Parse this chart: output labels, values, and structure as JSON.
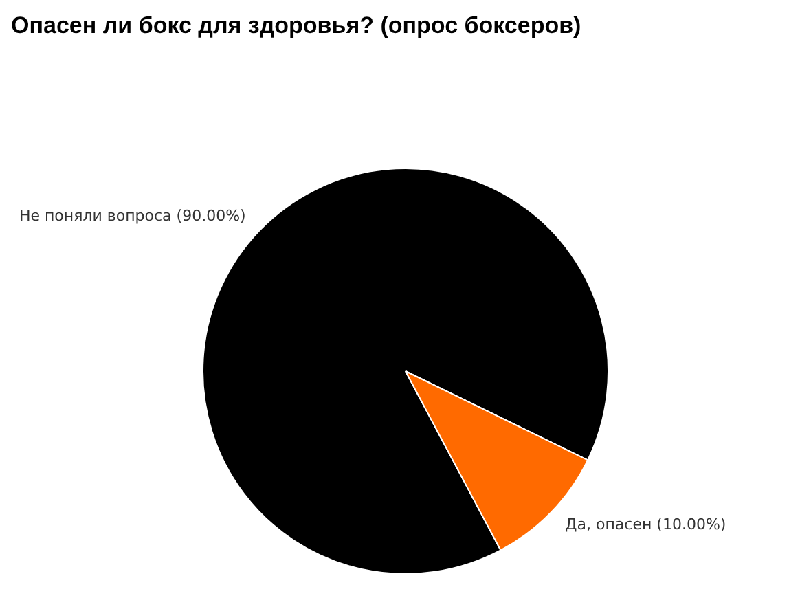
{
  "chart_data": {
    "type": "pie",
    "title": "Опасен ли бокс для здоровья? (опрос боксеров)",
    "categories": [
      "Не поняли вопроса",
      "Да, опасен"
    ],
    "values": [
      90,
      10
    ],
    "value_labels": [
      "(90.00%)",
      "(10.00%)"
    ],
    "colors": [
      "#000000",
      "#ff6a00"
    ],
    "legend": false
  }
}
